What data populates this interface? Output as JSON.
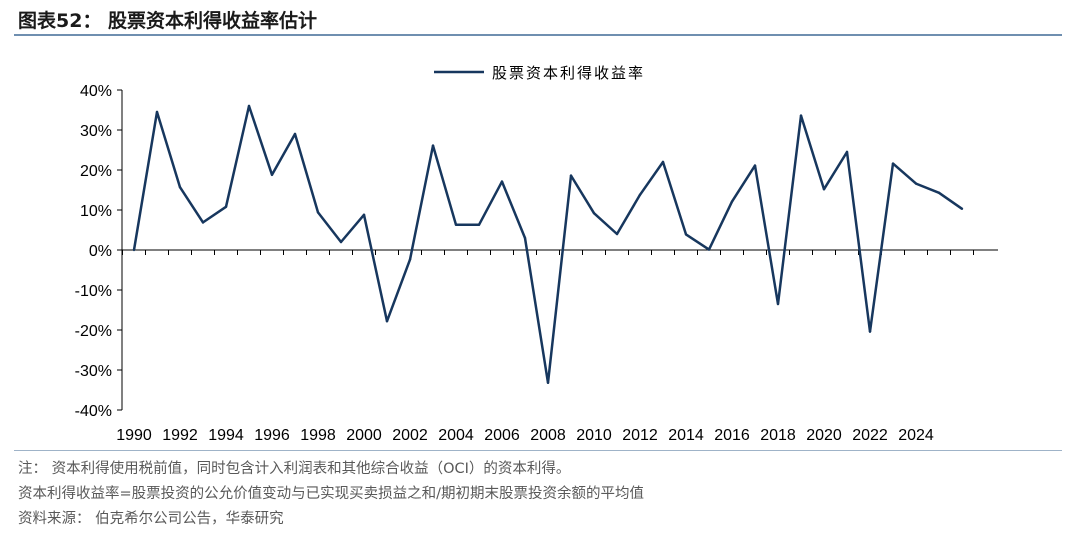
{
  "header": {
    "title": "图表52：  股票资本利得收益率估计"
  },
  "chart_data": {
    "type": "line",
    "title": "",
    "xlabel": "",
    "ylabel": "",
    "ylim": [
      -40,
      40
    ],
    "yticks": [
      "40%",
      "30%",
      "20%",
      "10%",
      "0%",
      "-10%",
      "-20%",
      "-30%",
      "-40%"
    ],
    "yticks_values": [
      40,
      30,
      20,
      10,
      0,
      -10,
      -20,
      -30,
      -40
    ],
    "xtick_labels": [
      "1990",
      "1992",
      "1994",
      "1996",
      "1998",
      "2000",
      "2002",
      "2004",
      "2006",
      "2008",
      "2010",
      "2012",
      "2014",
      "2016",
      "2018",
      "2020",
      "2022",
      "2024"
    ],
    "legend_position": "top-center",
    "grid": false,
    "series_color": "#17375e",
    "x": [
      1990,
      1991,
      1992,
      1993,
      1994,
      1995,
      1996,
      1997,
      1998,
      1999,
      2000,
      2001,
      2002,
      2003,
      2004,
      2005,
      2006,
      2007,
      2008,
      2009,
      2010,
      2011,
      2012,
      2013,
      2014,
      2015,
      2016,
      2017,
      2018,
      2019,
      2020,
      2021,
      2022,
      2023,
      2024,
      2025,
      2026
    ],
    "series": [
      {
        "name": "股票资本利得收益率",
        "values": [
          0,
          34.5,
          15.7,
          6.9,
          10.8,
          36.0,
          18.8,
          29.0,
          9.4,
          2.0,
          8.8,
          -17.8,
          -2.4,
          26.1,
          6.3,
          6.3,
          17.1,
          3.0,
          -33.2,
          18.6,
          9.2,
          4.0,
          13.8,
          22.0,
          3.9,
          0.1,
          12.1,
          21.1,
          -13.5,
          33.6,
          15.2,
          24.5,
          -20.4,
          21.6,
          16.6,
          14.3,
          10.3
        ]
      }
    ]
  },
  "notes": {
    "line1": "注：  资本利得使用税前值，同时包含计入利润表和其他综合收益（OCI）的资本利得。",
    "line2": "资本利得收益率=股票投资的公允价值变动与已实现买卖损益之和/期初期末股票投资余额的平均值",
    "line3": "资料来源：  伯克希尔公司公告，华泰研究"
  }
}
